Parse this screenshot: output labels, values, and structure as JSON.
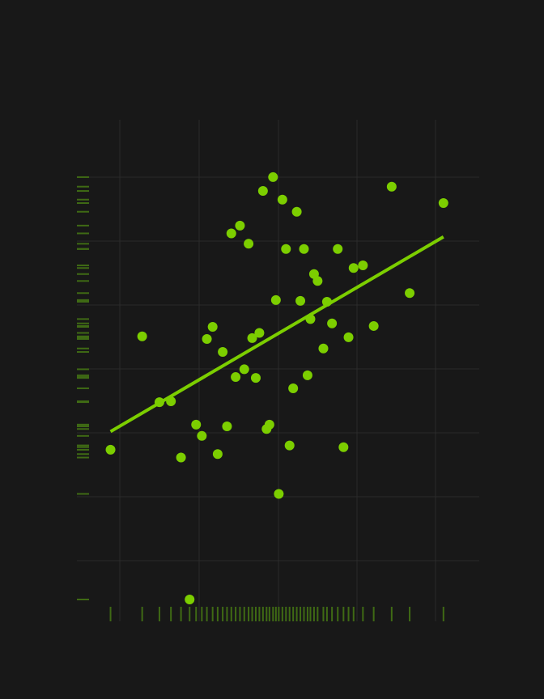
{
  "colors": {
    "background": "#181818",
    "grid": "#2a2a2a",
    "point": "#7cce00",
    "line": "#7cce00",
    "rug": "#3f6a14"
  },
  "chart_data": {
    "type": "scatter",
    "title": "",
    "xlabel": "",
    "ylabel": "",
    "grid": true,
    "legend": "none",
    "xlim": [
      0,
      51
    ],
    "ylim": [
      0,
      53
    ],
    "rug": {
      "x": true,
      "y": true
    },
    "points": [
      {
        "x": 2.2,
        "y": 17.3
      },
      {
        "x": 6.6,
        "y": 30.4
      },
      {
        "x": 9.0,
        "y": 22.8
      },
      {
        "x": 10.6,
        "y": 22.9
      },
      {
        "x": 12.0,
        "y": 16.4
      },
      {
        "x": 13.2,
        "y": 0.0
      },
      {
        "x": 14.1,
        "y": 20.2
      },
      {
        "x": 14.9,
        "y": 18.9
      },
      {
        "x": 15.6,
        "y": 30.1
      },
      {
        "x": 16.4,
        "y": 31.5
      },
      {
        "x": 17.1,
        "y": 16.8
      },
      {
        "x": 17.8,
        "y": 28.6
      },
      {
        "x": 18.4,
        "y": 20.0
      },
      {
        "x": 19.0,
        "y": 42.3
      },
      {
        "x": 19.6,
        "y": 25.7
      },
      {
        "x": 20.2,
        "y": 43.2
      },
      {
        "x": 20.8,
        "y": 26.6
      },
      {
        "x": 21.4,
        "y": 41.1
      },
      {
        "x": 21.9,
        "y": 30.2
      },
      {
        "x": 22.4,
        "y": 25.6
      },
      {
        "x": 22.9,
        "y": 30.8
      },
      {
        "x": 23.4,
        "y": 47.2
      },
      {
        "x": 23.9,
        "y": 19.7
      },
      {
        "x": 24.3,
        "y": 20.2
      },
      {
        "x": 24.8,
        "y": 48.8
      },
      {
        "x": 25.2,
        "y": 34.6
      },
      {
        "x": 25.6,
        "y": 12.2
      },
      {
        "x": 26.1,
        "y": 46.2
      },
      {
        "x": 26.6,
        "y": 40.5
      },
      {
        "x": 27.1,
        "y": 17.8
      },
      {
        "x": 27.6,
        "y": 24.4
      },
      {
        "x": 28.1,
        "y": 44.8
      },
      {
        "x": 28.6,
        "y": 34.5
      },
      {
        "x": 29.1,
        "y": 40.5
      },
      {
        "x": 29.6,
        "y": 25.9
      },
      {
        "x": 30.0,
        "y": 32.4
      },
      {
        "x": 30.5,
        "y": 37.6
      },
      {
        "x": 31.0,
        "y": 36.8
      },
      {
        "x": 31.8,
        "y": 29.0
      },
      {
        "x": 32.3,
        "y": 34.4
      },
      {
        "x": 33.0,
        "y": 31.9
      },
      {
        "x": 33.8,
        "y": 40.5
      },
      {
        "x": 34.6,
        "y": 17.6
      },
      {
        "x": 35.3,
        "y": 30.3
      },
      {
        "x": 36.0,
        "y": 38.3
      },
      {
        "x": 37.3,
        "y": 38.6
      },
      {
        "x": 38.8,
        "y": 31.6
      },
      {
        "x": 41.3,
        "y": 47.7
      },
      {
        "x": 43.8,
        "y": 35.4
      },
      {
        "x": 48.5,
        "y": 45.8
      }
    ],
    "trendline": {
      "x": [
        2.2,
        48.5
      ],
      "y": [
        19.4,
        41.9
      ]
    }
  }
}
